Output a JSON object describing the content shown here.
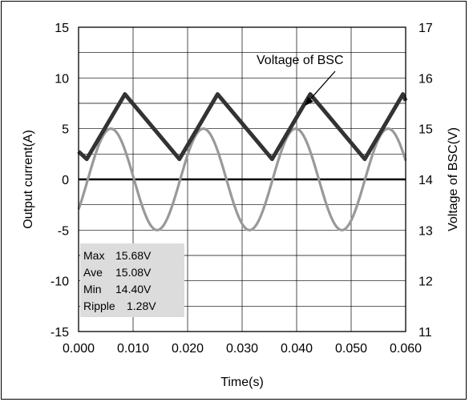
{
  "chart_data": {
    "type": "line",
    "xlabel": "Time(s)",
    "ylabel_left": "Output current(A)",
    "ylabel_right": "Voltage of BSC(V)",
    "xlim": [
      0.0,
      0.06
    ],
    "ylim_left": [
      -15,
      15
    ],
    "ylim_right": [
      11,
      17
    ],
    "x_ticks": [
      "0.000",
      "0.010",
      "0.020",
      "0.030",
      "0.040",
      "0.050",
      "0.060"
    ],
    "y_ticks_left": [
      "15",
      "10",
      "5",
      "0",
      "-5",
      "-10",
      "-15"
    ],
    "y_ticks_right": [
      "17",
      "16",
      "15",
      "14",
      "13",
      "12",
      "11"
    ],
    "grid": true,
    "series": [
      {
        "axis": "right",
        "color": "#333333",
        "x": [
          0.0,
          0.0015,
          0.0085,
          0.0185,
          0.0255,
          0.0355,
          0.0425,
          0.0525,
          0.0595,
          0.06
        ],
        "y": [
          14.55,
          14.4,
          15.68,
          14.4,
          15.68,
          14.4,
          15.68,
          14.4,
          15.68,
          15.55
        ]
      },
      {
        "axis": "left",
        "color": "#999999",
        "amplitude": 5,
        "frequency_hz": 59,
        "phase_rad": -0.63,
        "x_range": [
          0.0,
          0.06
        ]
      }
    ],
    "annotations": [
      {
        "text": "Voltage of BSC",
        "arrow_to": [
          0.0415,
          15.45
        ]
      }
    ],
    "stats_box": {
      "rows": [
        {
          "label": "Max",
          "value": "15.68V"
        },
        {
          "label": "Ave",
          "value": "15.08V"
        },
        {
          "label": "Min",
          "value": "14.40V"
        },
        {
          "label": "Ripple",
          "value": "1.28V"
        }
      ]
    }
  }
}
